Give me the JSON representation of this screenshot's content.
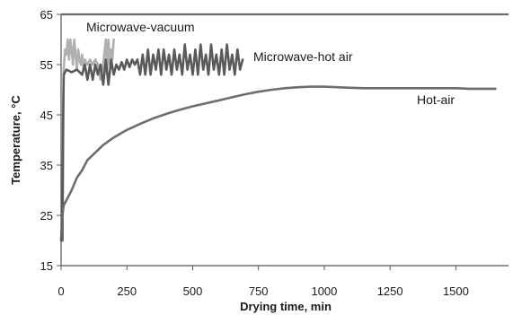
{
  "chart_data": {
    "type": "line",
    "xlabel": "Drying time, min",
    "ylabel": "Temperature, °C",
    "xlim": [
      0,
      1700
    ],
    "ylim": [
      15,
      65
    ],
    "x_ticks": [
      0,
      250,
      500,
      750,
      1000,
      1250,
      1500
    ],
    "y_ticks": [
      15,
      25,
      35,
      45,
      55,
      65
    ],
    "grid": "horizontal line at 65 only",
    "series": [
      {
        "name": "Microwave-vacuum",
        "color": "#b0b0b0",
        "points": [
          [
            5,
            20
          ],
          [
            8,
            40
          ],
          [
            10,
            54
          ],
          [
            15,
            58
          ],
          [
            20,
            57
          ],
          [
            25,
            60
          ],
          [
            30,
            56
          ],
          [
            35,
            60
          ],
          [
            40,
            58
          ],
          [
            45,
            55
          ],
          [
            50,
            60
          ],
          [
            55,
            57
          ],
          [
            60,
            54
          ],
          [
            65,
            58
          ],
          [
            70,
            56
          ],
          [
            75,
            55
          ],
          [
            80,
            57
          ],
          [
            85,
            54
          ],
          [
            90,
            56
          ],
          [
            100,
            55
          ],
          [
            110,
            56
          ],
          [
            120,
            55
          ],
          [
            130,
            56
          ],
          [
            140,
            55
          ],
          [
            150,
            52
          ],
          [
            160,
            55
          ],
          [
            170,
            60
          ],
          [
            175,
            54
          ],
          [
            180,
            60
          ],
          [
            185,
            55
          ],
          [
            190,
            58
          ],
          [
            195,
            56
          ],
          [
            200,
            60
          ]
        ]
      },
      {
        "name": "Microwave-hot air",
        "color": "#5a5a5a",
        "points": [
          [
            5,
            20
          ],
          [
            8,
            45
          ],
          [
            10,
            53
          ],
          [
            20,
            54
          ],
          [
            40,
            53.5
          ],
          [
            60,
            54
          ],
          [
            80,
            53
          ],
          [
            90,
            55
          ],
          [
            100,
            52
          ],
          [
            110,
            55
          ],
          [
            120,
            52
          ],
          [
            130,
            55
          ],
          [
            140,
            53
          ],
          [
            150,
            55
          ],
          [
            160,
            51
          ],
          [
            170,
            56
          ],
          [
            180,
            51
          ],
          [
            190,
            56
          ],
          [
            200,
            53
          ],
          [
            210,
            55
          ],
          [
            220,
            54
          ],
          [
            230,
            55.5
          ],
          [
            240,
            54
          ],
          [
            250,
            56
          ],
          [
            260,
            54.5
          ],
          [
            270,
            56
          ],
          [
            280,
            55
          ],
          [
            290,
            56
          ],
          [
            300,
            53
          ],
          [
            310,
            57
          ],
          [
            320,
            53
          ],
          [
            330,
            58
          ],
          [
            340,
            53
          ],
          [
            350,
            57
          ],
          [
            360,
            54
          ],
          [
            370,
            58
          ],
          [
            380,
            53
          ],
          [
            390,
            58
          ],
          [
            400,
            54
          ],
          [
            410,
            57
          ],
          [
            420,
            53
          ],
          [
            430,
            58
          ],
          [
            440,
            54
          ],
          [
            450,
            57
          ],
          [
            460,
            53
          ],
          [
            470,
            59
          ],
          [
            480,
            54
          ],
          [
            490,
            57
          ],
          [
            500,
            53
          ],
          [
            510,
            58
          ],
          [
            520,
            53
          ],
          [
            530,
            59
          ],
          [
            540,
            54
          ],
          [
            550,
            57
          ],
          [
            560,
            53
          ],
          [
            570,
            59
          ],
          [
            580,
            54
          ],
          [
            590,
            57
          ],
          [
            600,
            53
          ],
          [
            610,
            58
          ],
          [
            620,
            53
          ],
          [
            630,
            59
          ],
          [
            640,
            54
          ],
          [
            650,
            57
          ],
          [
            660,
            53
          ],
          [
            670,
            58
          ],
          [
            680,
            54
          ],
          [
            690,
            56
          ]
        ]
      },
      {
        "name": "Hot-air",
        "color": "#6e6e6e",
        "points": [
          [
            0,
            20
          ],
          [
            5,
            25
          ],
          [
            10,
            27
          ],
          [
            20,
            28
          ],
          [
            40,
            30
          ],
          [
            60,
            32.5
          ],
          [
            80,
            34
          ],
          [
            100,
            36
          ],
          [
            130,
            37.5
          ],
          [
            160,
            39
          ],
          [
            200,
            40.5
          ],
          [
            250,
            42
          ],
          [
            300,
            43.2
          ],
          [
            350,
            44.3
          ],
          [
            400,
            45.2
          ],
          [
            450,
            46
          ],
          [
            500,
            46.7
          ],
          [
            550,
            47.3
          ],
          [
            600,
            47.9
          ],
          [
            650,
            48.5
          ],
          [
            700,
            49.1
          ],
          [
            750,
            49.6
          ],
          [
            800,
            50
          ],
          [
            850,
            50.3
          ],
          [
            900,
            50.5
          ],
          [
            950,
            50.6
          ],
          [
            1000,
            50.6
          ],
          [
            1050,
            50.5
          ],
          [
            1100,
            50.4
          ],
          [
            1150,
            50.3
          ],
          [
            1200,
            50.3
          ],
          [
            1250,
            50.3
          ],
          [
            1300,
            50.3
          ],
          [
            1350,
            50.3
          ],
          [
            1400,
            50.3
          ],
          [
            1450,
            50.3
          ],
          [
            1500,
            50.3
          ],
          [
            1550,
            50.2
          ],
          [
            1600,
            50.2
          ],
          [
            1650,
            50.2
          ]
        ]
      }
    ]
  }
}
